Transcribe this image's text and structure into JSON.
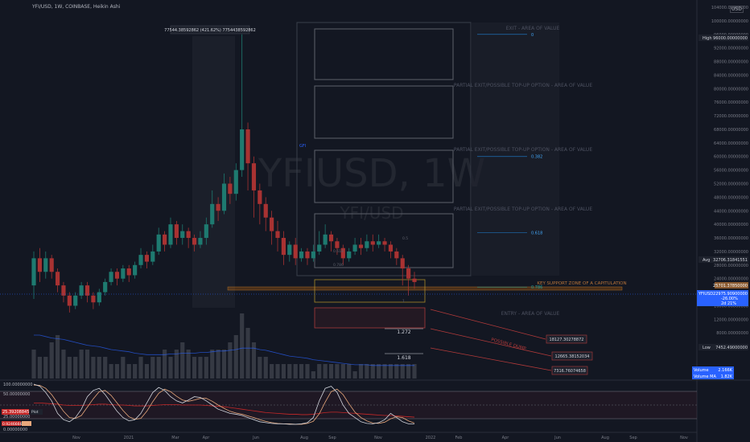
{
  "header": {
    "symbol_line": "YFI/USD, 1W, COINBASE, Heikin Ashi",
    "currency": "USD"
  },
  "chart_data": {
    "type": "candlestick",
    "style": "Heikin Ashi",
    "watermark_symbol": "YFIUSD, 1W",
    "watermark_pair": "YFI/USD",
    "ylim": [
      0,
      104000
    ],
    "y_ticks": [
      "104000.00000000",
      "100000.00000000",
      "96000.00000000",
      "92000.00000000",
      "88000.00000000",
      "84000.00000000",
      "80000.00000000",
      "76000.00000000",
      "72000.00000000",
      "68000.00000000",
      "64000.00000000",
      "60000.00000000",
      "56000.00000000",
      "52000.00000000",
      "48000.00000000",
      "44000.00000000",
      "40000.00000000",
      "36000.00000000",
      "32000.00000000",
      "28000.00000000",
      "24000.00000000",
      "20000.00000000",
      "16000.00000000",
      "12000.00000000",
      "8000.00000000",
      "4000.00000000"
    ],
    "x_ticks": [
      "Nov",
      "2021",
      "Mar",
      "Apr",
      "Jun",
      "Aug",
      "Sep",
      "Nov",
      "2022",
      "Feb",
      "Apr",
      "Jun",
      "Aug",
      "Sep",
      "Nov"
    ],
    "price_labels": {
      "high": {
        "tag": "High",
        "value": "96000.00000000"
      },
      "avg": {
        "tag": "Avg",
        "value": "32706.31841551"
      },
      "current": {
        "tag": "YFIUSD",
        "value": "22975.90900000",
        "change": "-26.00%",
        "countdown": "2d 21%"
      },
      "line": {
        "value": "25701.37850000"
      },
      "low": {
        "tag": "Low",
        "value": "7452.49000000"
      },
      "volume": {
        "tag": "Volume",
        "value": "2.166K"
      },
      "volume_ma": {
        "tag": "Volume MA",
        "value": "1.82K"
      }
    },
    "measure_label": "77544.38592862 (421.62%) 7754438592862",
    "zones": [
      {
        "label": "EXIT - AREA OF VALUE"
      },
      {
        "label": "PARTIAL EXIT/POSSIBLE TOP-UP OPTION - AREA OF VALUE"
      },
      {
        "label": "PARTIAL EXIT/POSSIBLE TOP-UP OPTION - AREA OF VALUE"
      },
      {
        "label": "PARTIAL EXIT/POSSIBLE TOP-UP OPTION - AREA OF VALUE"
      },
      {
        "label": "ENTRY - AREA OF VALUE"
      }
    ],
    "fib_levels": [
      {
        "label": "0",
        "value": 96000
      },
      {
        "label": "0.382",
        "value": 60000
      },
      {
        "label": "0.618",
        "value": 37500
      },
      {
        "label": "0.786",
        "value": 21500
      }
    ],
    "key_support_label": "KEY SUPPORT ZONE OF A CAPITULATION",
    "possible_dump_label": "POSSIBLE DUMP",
    "small_labels": [
      "0.5",
      "0.618",
      "0.786",
      "1"
    ],
    "fib_extensions": [
      {
        "label": "1.272",
        "value": 12800
      },
      {
        "label": "1.618",
        "value": 6500
      }
    ],
    "targets": [
      "18127.30278872",
      "12665.38152034",
      "7316.76074658"
    ],
    "fib_top_label": "GFI",
    "osc_ticks": [
      "100.00000000",
      "50.00000000",
      "25.00000000",
      "0.00000000"
    ],
    "osc_labels": {
      "k": "25.39208845",
      "k_tag": "Plot",
      "d": "0.92466667"
    },
    "candles": [
      {
        "o": 22000,
        "c": 30000,
        "h": 32000,
        "l": 18000
      },
      {
        "o": 30000,
        "c": 26000,
        "h": 33000,
        "l": 23000
      },
      {
        "o": 26000,
        "c": 30000,
        "h": 32000,
        "l": 24000
      },
      {
        "o": 30000,
        "c": 26000,
        "h": 31000,
        "l": 24000
      },
      {
        "o": 26000,
        "c": 22000,
        "h": 27000,
        "l": 20000
      },
      {
        "o": 22000,
        "c": 19000,
        "h": 23000,
        "l": 17000
      },
      {
        "o": 19000,
        "c": 16000,
        "h": 20000,
        "l": 14000
      },
      {
        "o": 16000,
        "c": 19000,
        "h": 20000,
        "l": 15000
      },
      {
        "o": 19000,
        "c": 22000,
        "h": 23000,
        "l": 18000
      },
      {
        "o": 22000,
        "c": 19000,
        "h": 23000,
        "l": 17000
      },
      {
        "o": 19000,
        "c": 17000,
        "h": 20000,
        "l": 15000
      },
      {
        "o": 17000,
        "c": 20000,
        "h": 21000,
        "l": 16000
      },
      {
        "o": 20000,
        "c": 23000,
        "h": 24000,
        "l": 19000
      },
      {
        "o": 23000,
        "c": 26000,
        "h": 27000,
        "l": 22000
      },
      {
        "o": 26000,
        "c": 24000,
        "h": 27000,
        "l": 22000
      },
      {
        "o": 24000,
        "c": 27000,
        "h": 28000,
        "l": 23000
      },
      {
        "o": 27000,
        "c": 25000,
        "h": 28000,
        "l": 23000
      },
      {
        "o": 25000,
        "c": 28000,
        "h": 29000,
        "l": 24000
      },
      {
        "o": 28000,
        "c": 31000,
        "h": 33000,
        "l": 27000
      },
      {
        "o": 31000,
        "c": 29000,
        "h": 32000,
        "l": 27000
      },
      {
        "o": 29000,
        "c": 32000,
        "h": 34000,
        "l": 28000
      },
      {
        "o": 32000,
        "c": 37000,
        "h": 39000,
        "l": 31000
      },
      {
        "o": 37000,
        "c": 34000,
        "h": 38000,
        "l": 32000
      },
      {
        "o": 34000,
        "c": 40000,
        "h": 42000,
        "l": 33000
      },
      {
        "o": 40000,
        "c": 36000,
        "h": 41000,
        "l": 34000
      },
      {
        "o": 36000,
        "c": 38000,
        "h": 40000,
        "l": 34000
      },
      {
        "o": 38000,
        "c": 36000,
        "h": 39000,
        "l": 33000
      },
      {
        "o": 36000,
        "c": 34000,
        "h": 37000,
        "l": 32000
      },
      {
        "o": 34000,
        "c": 36000,
        "h": 38000,
        "l": 33000
      },
      {
        "o": 36000,
        "c": 40000,
        "h": 42000,
        "l": 34000
      },
      {
        "o": 40000,
        "c": 46000,
        "h": 50000,
        "l": 39000
      },
      {
        "o": 46000,
        "c": 44000,
        "h": 48000,
        "l": 41000
      },
      {
        "o": 44000,
        "c": 52000,
        "h": 55000,
        "l": 43000
      },
      {
        "o": 52000,
        "c": 49000,
        "h": 54000,
        "l": 46000
      },
      {
        "o": 49000,
        "c": 56000,
        "h": 58000,
        "l": 47000
      },
      {
        "o": 56000,
        "c": 68000,
        "h": 96000,
        "l": 54000
      },
      {
        "o": 68000,
        "c": 58000,
        "h": 70000,
        "l": 50000
      },
      {
        "o": 58000,
        "c": 50000,
        "h": 60000,
        "l": 42000
      },
      {
        "o": 50000,
        "c": 46000,
        "h": 52000,
        "l": 40000
      },
      {
        "o": 46000,
        "c": 42000,
        "h": 48000,
        "l": 38000
      },
      {
        "o": 42000,
        "c": 38000,
        "h": 44000,
        "l": 34000
      },
      {
        "o": 38000,
        "c": 36000,
        "h": 41000,
        "l": 32000
      },
      {
        "o": 36000,
        "c": 31000,
        "h": 38000,
        "l": 28000
      },
      {
        "o": 31000,
        "c": 34000,
        "h": 35000,
        "l": 29000
      },
      {
        "o": 34000,
        "c": 30000,
        "h": 36000,
        "l": 28000
      },
      {
        "o": 30000,
        "c": 32000,
        "h": 33000,
        "l": 29000
      },
      {
        "o": 32000,
        "c": 30000,
        "h": 33000,
        "l": 28000
      },
      {
        "o": 30000,
        "c": 32000,
        "h": 34000,
        "l": 29000
      },
      {
        "o": 32000,
        "c": 34000,
        "h": 38000,
        "l": 31000
      },
      {
        "o": 34000,
        "c": 37000,
        "h": 40000,
        "l": 33000
      },
      {
        "o": 37000,
        "c": 35000,
        "h": 38000,
        "l": 32000
      },
      {
        "o": 35000,
        "c": 33000,
        "h": 36000,
        "l": 31000
      },
      {
        "o": 33000,
        "c": 30000,
        "h": 34000,
        "l": 28000
      },
      {
        "o": 30000,
        "c": 32000,
        "h": 33000,
        "l": 29000
      },
      {
        "o": 32000,
        "c": 34000,
        "h": 36000,
        "l": 31000
      },
      {
        "o": 34000,
        "c": 33000,
        "h": 36000,
        "l": 31000
      },
      {
        "o": 33000,
        "c": 35000,
        "h": 37000,
        "l": 32000
      },
      {
        "o": 35000,
        "c": 34000,
        "h": 37000,
        "l": 32000
      },
      {
        "o": 34000,
        "c": 35000,
        "h": 37000,
        "l": 33000
      },
      {
        "o": 35000,
        "c": 34000,
        "h": 36000,
        "l": 32000
      },
      {
        "o": 34000,
        "c": 32000,
        "h": 35000,
        "l": 30000
      },
      {
        "o": 32000,
        "c": 30000,
        "h": 33000,
        "l": 28000
      },
      {
        "o": 30000,
        "c": 27000,
        "h": 31000,
        "l": 22000
      },
      {
        "o": 27000,
        "c": 24000,
        "h": 28000,
        "l": 19000
      },
      {
        "o": 24000,
        "c": 23000,
        "h": 26000,
        "l": 21000
      }
    ],
    "volume": [
      4,
      3,
      3,
      5,
      6,
      4,
      3,
      3,
      4,
      4,
      3,
      3,
      3,
      2,
      2,
      3,
      2,
      2,
      3,
      2,
      3,
      3,
      4,
      3,
      4,
      5,
      4,
      3,
      3,
      3,
      4,
      4,
      4,
      5,
      6,
      9,
      7,
      5,
      3,
      3,
      2,
      2,
      2,
      2,
      2,
      2,
      2,
      1,
      2,
      2,
      2,
      2,
      2,
      2,
      1,
      2,
      2,
      2,
      2,
      2,
      2,
      2,
      2,
      2,
      2
    ],
    "volume_ma": [
      6,
      6,
      5.8,
      5.6,
      5.5,
      5.4,
      5.2,
      5,
      4.8,
      4.6,
      4.5,
      4.4,
      4.2,
      4,
      3.9,
      3.8,
      3.7,
      3.5,
      3.4,
      3.3,
      3.3,
      3.3,
      3.3,
      3.4,
      3.4,
      3.5,
      3.5,
      3.5,
      3.6,
      3.6,
      3.7,
      3.8,
      3.8,
      3.9,
      4,
      4.2,
      4.2,
      4.2,
      4,
      3.9,
      3.7,
      3.5,
      3.3,
      3.1,
      3,
      2.9,
      2.8,
      2.6,
      2.5,
      2.4,
      2.3,
      2.2,
      2.1,
      2,
      1.9,
      1.9,
      1.9,
      1.8,
      1.8,
      1.8,
      1.8,
      1.8,
      1.8,
      1.8,
      1.8
    ],
    "osc_k": [
      100,
      95,
      80,
      60,
      30,
      15,
      10,
      20,
      40,
      70,
      85,
      90,
      75,
      55,
      35,
      20,
      12,
      15,
      30,
      55,
      80,
      92,
      85,
      70,
      60,
      55,
      62,
      70,
      68,
      60,
      50,
      40,
      35,
      30,
      28,
      25,
      20,
      15,
      10,
      8,
      6,
      5,
      5,
      4,
      4,
      5,
      8,
      20,
      60,
      90,
      95,
      80,
      50,
      30,
      20,
      10,
      6,
      5,
      8,
      15,
      30,
      20,
      10,
      5,
      5
    ],
    "osc_d": [
      98,
      97,
      90,
      75,
      55,
      35,
      20,
      18,
      25,
      45,
      65,
      82,
      85,
      73,
      55,
      37,
      22,
      16,
      18,
      35,
      58,
      78,
      88,
      82,
      71,
      62,
      59,
      62,
      66,
      66,
      59,
      50,
      42,
      35,
      31,
      28,
      24,
      20,
      15,
      11,
      8,
      6,
      5,
      5,
      4,
      4,
      6,
      11,
      29,
      57,
      82,
      88,
      75,
      53,
      33,
      20,
      12,
      7,
      6,
      9,
      17,
      22,
      20,
      12,
      7
    ],
    "osc_ma": [
      55,
      55,
      54,
      53,
      52,
      50,
      49,
      49,
      49,
      50,
      51,
      52,
      52,
      51,
      50,
      50,
      49,
      48,
      48,
      48,
      49,
      50,
      51,
      51,
      51,
      50,
      50,
      50,
      50,
      49,
      48,
      47,
      46,
      44,
      42,
      40,
      38,
      36,
      34,
      32,
      31,
      30,
      29,
      28,
      28,
      27,
      27,
      28,
      30,
      32,
      33,
      33,
      32,
      31,
      30,
      29,
      28,
      27,
      26,
      25,
      25,
      24,
      23,
      22,
      21
    ]
  }
}
